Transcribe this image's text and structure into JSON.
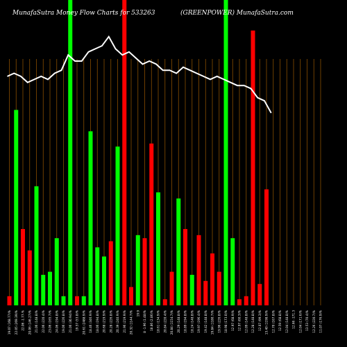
{
  "chart_data": {
    "type": "bar",
    "title_left": "MunafaSutra  Money Flow  Charts for 533263",
    "title_right": "(GREENPOWER) MunafaSutra.com",
    "colors": {
      "background": "#000000",
      "up": "#00ff00",
      "down": "#ff0000",
      "grid": "#8a4f00",
      "line": "#ffffff"
    },
    "grid": true,
    "ylim": [
      0,
      100
    ],
    "categories": [
      "19.07 (168.77)%",
      "22.05 (269.39)%",
      "22.06 -1.77-%",
      "20.06 (146.27)%",
      "21.06 (148.8)%",
      "22.06 (220.4)%",
      "23.06 (165.7)%",
      "24.06 (194.8)%",
      "19.06 (226.8)%",
      "21.06 (30.94)%",
      "19.57 (53.8)%",
      "20.61 (2488.9)%",
      "18.46 (346.9)%",
      "18.06 (194.8)%",
      "20.68 (219.9)%",
      "20.28 (226.8)%",
      "20.39 (240.9)%",
      "21.96 (219.9)%",
      "20.32 (1144.7)%",
      "19.9",
      "8 -1.96 (1.48)%",
      "18.86 (2.86)%",
      "18.61 (134.9)%",
      "20.84 (220.4)%",
      "20.84 (1154.7)%",
      "20.29 (148.8)%",
      "18.89 (194.8)%",
      "18.24 (148.8)%",
      "19.97 (196.4)%",
      "19.42 (148.8)%",
      "19.84 (1180.7)%",
      "19.96 (226.8)%",
      "18.98 (173.0)%",
      "12.97 (68.9)%",
      "12.97 (60.3)%",
      "12.09 (148.8)%",
      "12.28 (148.8)%",
      "12.07 (99.3)%",
      "13.40 (1198.9)%",
      "12.70 (167.8)%",
      "12.59 (68.8)%",
      "12.04 (148.8)%",
      "12.66 -171.3",
      "12.04 (171.6)%",
      "13.53 (70.4)%",
      "12.26 (220.7)%",
      "11.07 (176.9)%"
    ],
    "bar_colors": [
      "down",
      "up",
      "down",
      "down",
      "up",
      "up",
      "up",
      "up",
      "up",
      "up",
      "down",
      "up",
      "up",
      "up",
      "up",
      "down",
      "up",
      "down",
      "down",
      "up",
      "down",
      "down",
      "up",
      "down",
      "down",
      "up",
      "down",
      "up",
      "down",
      "down",
      "down",
      "down",
      "up",
      "up",
      "down",
      "down",
      "down",
      "down",
      "down",
      "down",
      "up",
      "up",
      "down",
      "down",
      "down",
      "down",
      "down"
    ],
    "values": [
      3,
      64,
      25,
      18,
      39,
      10,
      11,
      22,
      3,
      100,
      3,
      3,
      57,
      19,
      16,
      21,
      52,
      100,
      6,
      23,
      22,
      53,
      37,
      2,
      11,
      35,
      25,
      10,
      23,
      8,
      17,
      11,
      100,
      22,
      2,
      3,
      90,
      7,
      38,
      0,
      0,
      0,
      0,
      0,
      0,
      0,
      0
    ],
    "line_values": [
      75,
      76,
      75,
      73,
      74,
      75,
      74,
      76,
      77,
      82,
      80,
      80,
      83,
      84,
      85,
      88,
      84,
      82,
      83,
      81,
      79,
      80,
      79,
      77,
      77,
      76,
      78,
      77,
      76,
      75,
      74,
      75,
      74,
      73,
      72,
      72,
      71,
      68,
      67,
      63,
      0,
      0,
      0,
      0,
      0,
      0,
      0
    ]
  }
}
